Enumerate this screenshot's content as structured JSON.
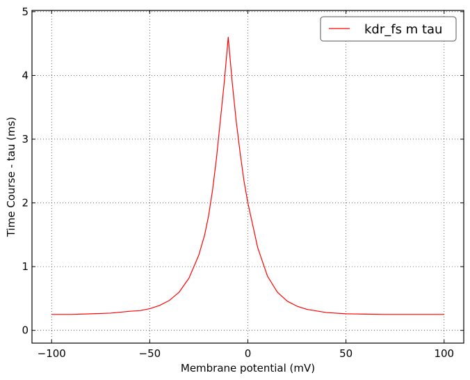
{
  "chart_data": {
    "type": "line",
    "xlabel": "Membrane potential (mV)",
    "ylabel": "Time Course - tau (ms)",
    "xlim": [
      -110,
      110
    ],
    "ylim": [
      -0.2,
      5.02
    ],
    "xticks": [
      -100,
      -50,
      0,
      50,
      100
    ],
    "xtick_labels": [
      "−100",
      "−50",
      "0",
      "50",
      "100"
    ],
    "yticks": [
      0,
      1,
      2,
      3,
      4,
      5
    ],
    "ytick_labels": [
      "0",
      "1",
      "2",
      "3",
      "4",
      "5"
    ],
    "grid": true,
    "legend_position": "top-right",
    "series": [
      {
        "name": "kdr_fs m tau",
        "color": "#ff0000",
        "x": [
          -100,
          -90,
          -80,
          -70,
          -60,
          -55,
          -50,
          -45,
          -40,
          -35,
          -30,
          -25,
          -22,
          -20,
          -18,
          -16,
          -14,
          -12,
          -10,
          -8,
          -6,
          -4,
          -2,
          0,
          5,
          10,
          15,
          20,
          25,
          30,
          40,
          50,
          60,
          70,
          80,
          90,
          100
        ],
        "y": [
          0.25,
          0.25,
          0.26,
          0.27,
          0.3,
          0.31,
          0.34,
          0.39,
          0.47,
          0.6,
          0.82,
          1.18,
          1.5,
          1.8,
          2.2,
          2.7,
          3.3,
          3.9,
          4.6,
          3.9,
          3.3,
          2.8,
          2.35,
          2.0,
          1.3,
          0.85,
          0.6,
          0.46,
          0.38,
          0.33,
          0.28,
          0.26,
          0.255,
          0.25,
          0.25,
          0.25,
          0.25
        ]
      }
    ]
  }
}
